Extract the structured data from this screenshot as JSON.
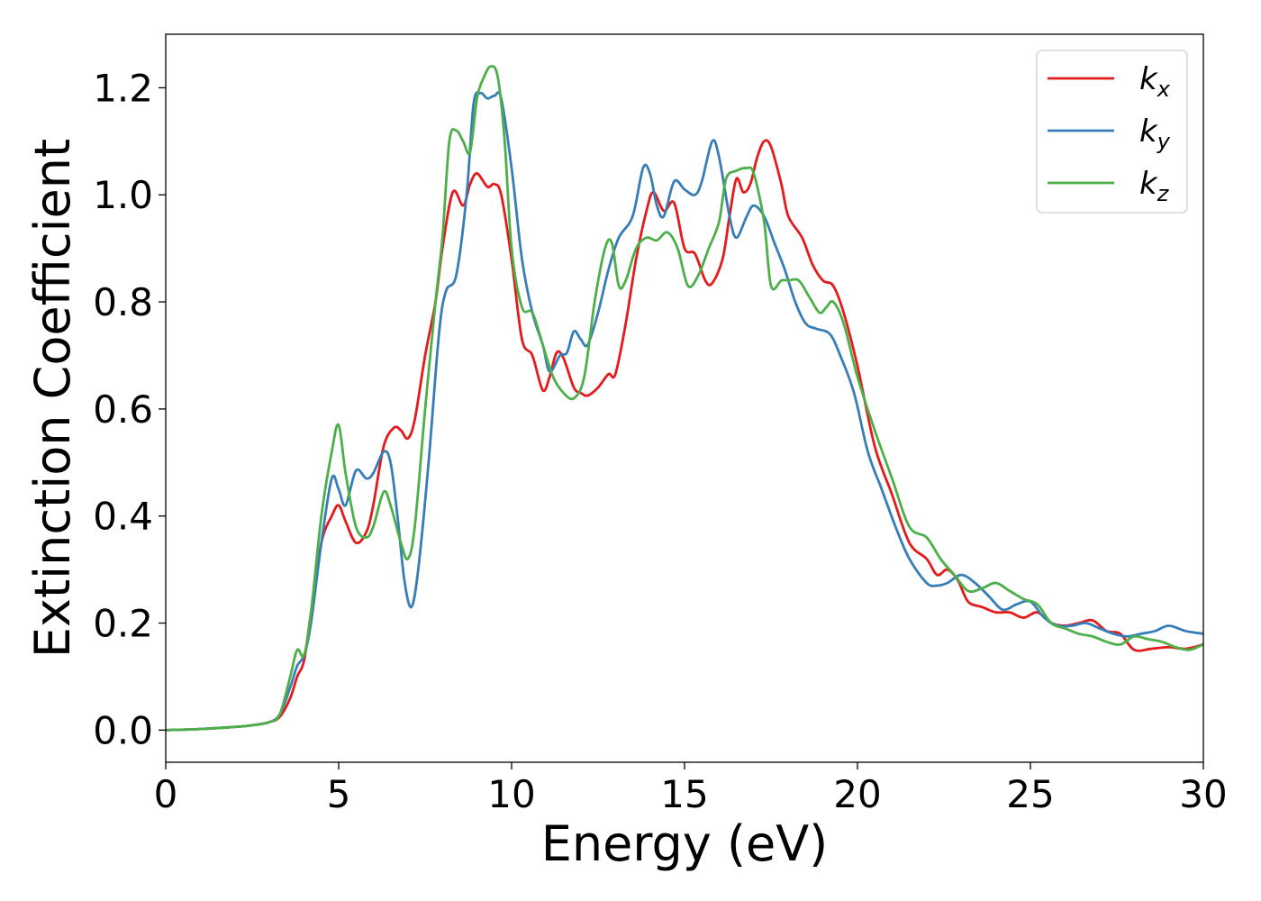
{
  "chart_data": {
    "type": "line",
    "xlabel": "Energy (eV)",
    "ylabel": "Extinction Coefficient",
    "xlim": [
      0,
      30
    ],
    "ylim": [
      -0.06,
      1.3
    ],
    "xticks": [
      0,
      5,
      10,
      15,
      20,
      25,
      30
    ],
    "yticks": [
      0.0,
      0.2,
      0.4,
      0.6,
      0.8,
      1.0,
      1.2
    ],
    "xtick_labels": [
      "0",
      "5",
      "10",
      "15",
      "20",
      "25",
      "30"
    ],
    "ytick_labels": [
      "0.0",
      "0.2",
      "0.4",
      "0.6",
      "0.8",
      "1.0",
      "1.2"
    ],
    "grid": false,
    "legend_position": "top-right",
    "series": [
      {
        "name": "k",
        "subscript": "x",
        "color": "#e41a1c",
        "x": [
          0,
          1,
          2,
          2.5,
          3,
          3.3,
          3.6,
          3.8,
          4.0,
          4.2,
          4.5,
          4.8,
          5.0,
          5.2,
          5.5,
          5.8,
          6.0,
          6.3,
          6.6,
          6.8,
          7.0,
          7.2,
          7.5,
          7.8,
          8.0,
          8.3,
          8.6,
          8.8,
          9.0,
          9.3,
          9.5,
          9.7,
          10.0,
          10.3,
          10.6,
          10.9,
          11.1,
          11.3,
          11.5,
          11.8,
          12.0,
          12.2,
          12.5,
          12.8,
          13.0,
          13.3,
          13.6,
          13.9,
          14.1,
          14.4,
          14.7,
          15.0,
          15.3,
          15.6,
          15.8,
          16.1,
          16.3,
          16.5,
          16.7,
          16.9,
          17.1,
          17.3,
          17.5,
          17.8,
          18.0,
          18.4,
          18.7,
          19.0,
          19.3,
          19.6,
          20.0,
          20.5,
          21.0,
          21.5,
          22.0,
          22.3,
          22.6,
          22.9,
          23.2,
          23.6,
          24.0,
          24.4,
          24.8,
          25.2,
          25.6,
          26.0,
          26.4,
          26.8,
          27.2,
          27.6,
          28.0,
          28.5,
          29.0,
          29.5,
          30.0
        ],
        "y": [
          0.0,
          0.002,
          0.006,
          0.009,
          0.015,
          0.025,
          0.06,
          0.1,
          0.13,
          0.22,
          0.35,
          0.4,
          0.42,
          0.39,
          0.35,
          0.37,
          0.42,
          0.53,
          0.565,
          0.56,
          0.545,
          0.58,
          0.7,
          0.8,
          0.9,
          1.005,
          0.98,
          1.02,
          1.04,
          1.015,
          1.02,
          1.0,
          0.88,
          0.73,
          0.7,
          0.635,
          0.66,
          0.705,
          0.695,
          0.64,
          0.63,
          0.625,
          0.64,
          0.665,
          0.665,
          0.76,
          0.88,
          0.97,
          1.005,
          0.97,
          0.985,
          0.9,
          0.89,
          0.84,
          0.835,
          0.88,
          0.96,
          1.03,
          1.005,
          1.02,
          1.07,
          1.1,
          1.09,
          1.02,
          0.96,
          0.92,
          0.87,
          0.84,
          0.83,
          0.78,
          0.68,
          0.53,
          0.44,
          0.35,
          0.32,
          0.29,
          0.3,
          0.28,
          0.24,
          0.23,
          0.22,
          0.22,
          0.21,
          0.22,
          0.2,
          0.195,
          0.2,
          0.205,
          0.185,
          0.18,
          0.15,
          0.152,
          0.155,
          0.152,
          0.16
        ]
      },
      {
        "name": "k",
        "subscript": "y",
        "color": "#377eb8",
        "x": [
          0,
          1,
          2,
          2.5,
          3,
          3.3,
          3.6,
          3.8,
          4.0,
          4.2,
          4.5,
          4.8,
          5.0,
          5.2,
          5.5,
          5.8,
          6.0,
          6.3,
          6.5,
          6.7,
          6.9,
          7.1,
          7.3,
          7.6,
          7.9,
          8.1,
          8.4,
          8.7,
          8.9,
          9.1,
          9.3,
          9.5,
          9.7,
          10.0,
          10.3,
          10.6,
          10.9,
          11.1,
          11.4,
          11.6,
          11.8,
          12.0,
          12.2,
          12.5,
          12.8,
          13.1,
          13.5,
          13.8,
          14.0,
          14.2,
          14.4,
          14.7,
          15.0,
          15.3,
          15.5,
          15.8,
          16.0,
          16.3,
          16.5,
          16.8,
          17.0,
          17.3,
          17.6,
          17.9,
          18.2,
          18.5,
          18.8,
          19.2,
          19.5,
          19.9,
          20.3,
          20.7,
          21.1,
          21.5,
          22.0,
          22.3,
          22.6,
          23.0,
          23.4,
          23.8,
          24.2,
          24.6,
          25.0,
          25.4,
          25.8,
          26.2,
          26.6,
          27.0,
          27.4,
          27.8,
          28.2,
          28.6,
          29.0,
          29.5,
          30.0
        ],
        "y": [
          0.0,
          0.002,
          0.006,
          0.009,
          0.015,
          0.03,
          0.08,
          0.12,
          0.14,
          0.2,
          0.35,
          0.47,
          0.45,
          0.42,
          0.485,
          0.47,
          0.48,
          0.52,
          0.5,
          0.4,
          0.28,
          0.23,
          0.3,
          0.5,
          0.74,
          0.82,
          0.85,
          1.0,
          1.17,
          1.19,
          1.18,
          1.185,
          1.18,
          1.05,
          0.88,
          0.78,
          0.72,
          0.67,
          0.7,
          0.705,
          0.745,
          0.73,
          0.72,
          0.78,
          0.86,
          0.92,
          0.96,
          1.05,
          1.04,
          0.98,
          0.96,
          1.025,
          1.01,
          1.0,
          1.025,
          1.1,
          1.07,
          0.96,
          0.92,
          0.96,
          0.98,
          0.96,
          0.91,
          0.86,
          0.8,
          0.76,
          0.75,
          0.74,
          0.7,
          0.63,
          0.52,
          0.45,
          0.38,
          0.32,
          0.275,
          0.27,
          0.275,
          0.29,
          0.275,
          0.25,
          0.225,
          0.235,
          0.24,
          0.21,
          0.195,
          0.195,
          0.2,
          0.19,
          0.18,
          0.175,
          0.18,
          0.185,
          0.195,
          0.185,
          0.18
        ]
      },
      {
        "name": "k",
        "subscript": "z",
        "color": "#4daf4a",
        "x": [
          0,
          1,
          2,
          2.5,
          3,
          3.3,
          3.6,
          3.8,
          4.0,
          4.2,
          4.5,
          4.8,
          5.0,
          5.2,
          5.5,
          5.8,
          6.0,
          6.3,
          6.5,
          6.8,
          7.0,
          7.2,
          7.5,
          7.8,
          8.0,
          8.2,
          8.4,
          8.6,
          8.8,
          9.0,
          9.2,
          9.4,
          9.6,
          9.8,
          10.0,
          10.3,
          10.6,
          10.9,
          11.2,
          11.5,
          11.8,
          12.1,
          12.4,
          12.7,
          12.9,
          13.1,
          13.3,
          13.6,
          13.9,
          14.2,
          14.5,
          14.8,
          15.1,
          15.4,
          15.7,
          16.0,
          16.2,
          16.5,
          16.8,
          17.0,
          17.3,
          17.5,
          17.8,
          18.0,
          18.3,
          18.6,
          18.9,
          19.1,
          19.3,
          19.6,
          20.0,
          20.5,
          21.0,
          21.5,
          22.0,
          22.4,
          22.8,
          23.2,
          23.6,
          24.0,
          24.4,
          24.8,
          25.2,
          25.6,
          26.0,
          26.4,
          26.8,
          27.2,
          27.6,
          28.0,
          28.4,
          28.8,
          29.2,
          29.6,
          30.0
        ],
        "y": [
          0.0,
          0.002,
          0.006,
          0.009,
          0.015,
          0.03,
          0.1,
          0.15,
          0.14,
          0.22,
          0.4,
          0.52,
          0.57,
          0.48,
          0.38,
          0.36,
          0.38,
          0.445,
          0.42,
          0.35,
          0.32,
          0.38,
          0.6,
          0.8,
          0.92,
          1.1,
          1.12,
          1.1,
          1.08,
          1.18,
          1.22,
          1.24,
          1.22,
          1.1,
          0.9,
          0.79,
          0.78,
          0.72,
          0.66,
          0.63,
          0.62,
          0.66,
          0.8,
          0.9,
          0.91,
          0.83,
          0.84,
          0.9,
          0.92,
          0.915,
          0.93,
          0.9,
          0.83,
          0.85,
          0.9,
          0.95,
          1.03,
          1.045,
          1.05,
          1.04,
          0.95,
          0.83,
          0.84,
          0.84,
          0.84,
          0.81,
          0.78,
          0.79,
          0.8,
          0.76,
          0.66,
          0.56,
          0.47,
          0.38,
          0.36,
          0.32,
          0.29,
          0.26,
          0.265,
          0.275,
          0.26,
          0.245,
          0.235,
          0.2,
          0.19,
          0.18,
          0.175,
          0.165,
          0.16,
          0.175,
          0.17,
          0.165,
          0.155,
          0.15,
          0.16
        ]
      }
    ]
  }
}
